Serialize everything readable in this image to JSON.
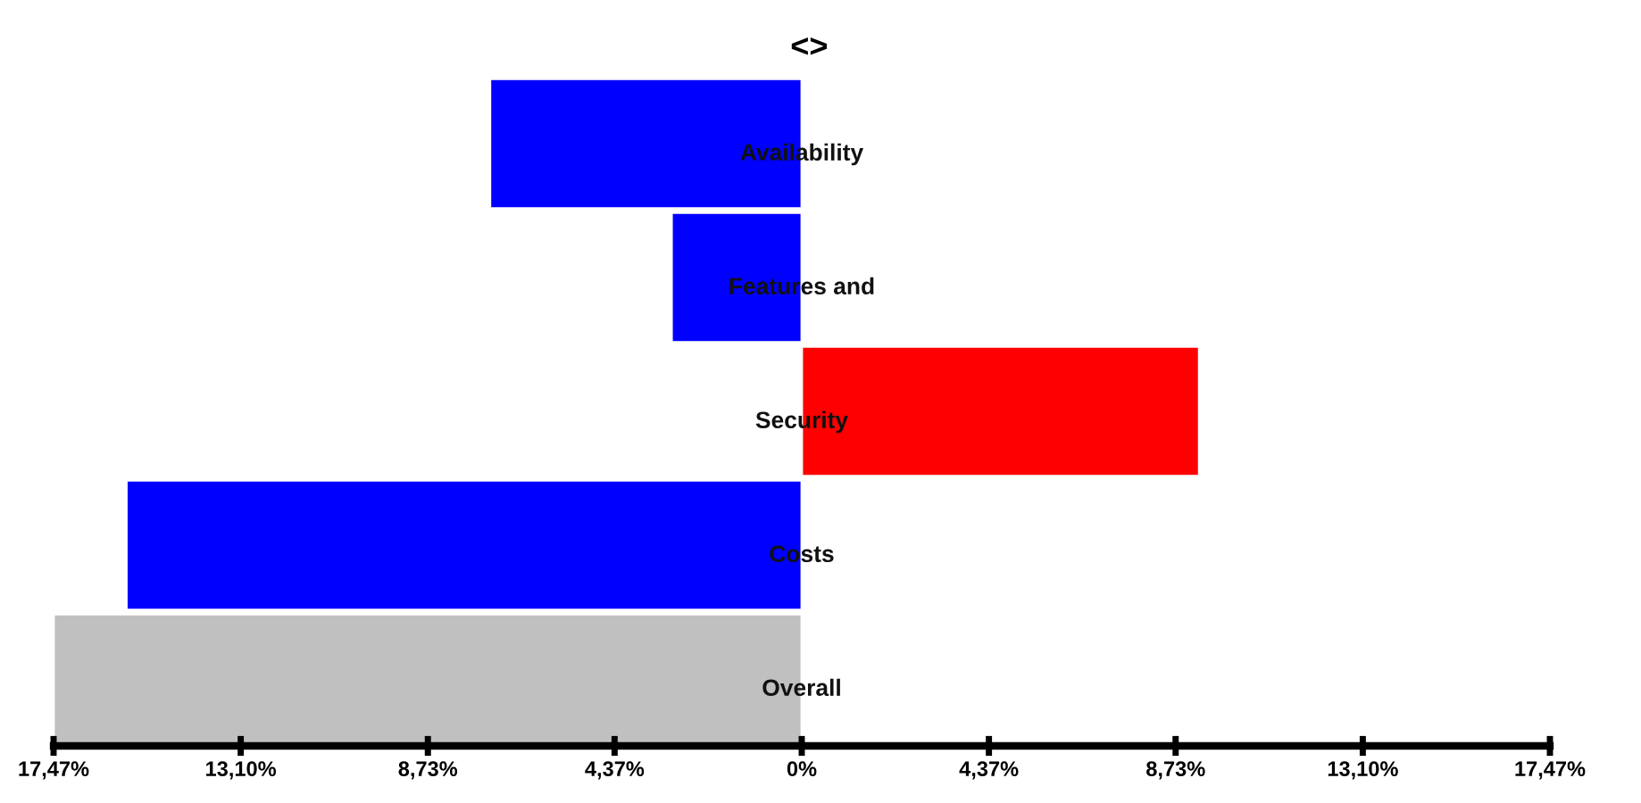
{
  "chart_data": {
    "type": "bar",
    "orientation": "horizontal",
    "title": "<>",
    "categories": [
      "Availability",
      "Features and",
      "Security",
      "Costs",
      "Overall"
    ],
    "values": [
      -7.28,
      -3.04,
      9.28,
      -15.77,
      -17.47
    ],
    "colors": [
      "#0000ff",
      "#0000ff",
      "#ff0000",
      "#0000ff",
      "#c0c0c0"
    ],
    "xlim": [
      -17.47,
      17.47
    ],
    "xticks": [
      {
        "value": -17.47,
        "label": "17,47%"
      },
      {
        "value": -13.1,
        "label": "13,10%"
      },
      {
        "value": -8.73,
        "label": "8,73%"
      },
      {
        "value": -4.37,
        "label": "4,37%"
      },
      {
        "value": 0,
        "label": "0%"
      },
      {
        "value": 4.37,
        "label": "4,37%"
      },
      {
        "value": 8.73,
        "label": "8,73%"
      },
      {
        "value": 13.1,
        "label": "13,10%"
      },
      {
        "value": 17.47,
        "label": "17,47%"
      }
    ],
    "tick_labels": "x",
    "grid": false,
    "legend": false
  }
}
